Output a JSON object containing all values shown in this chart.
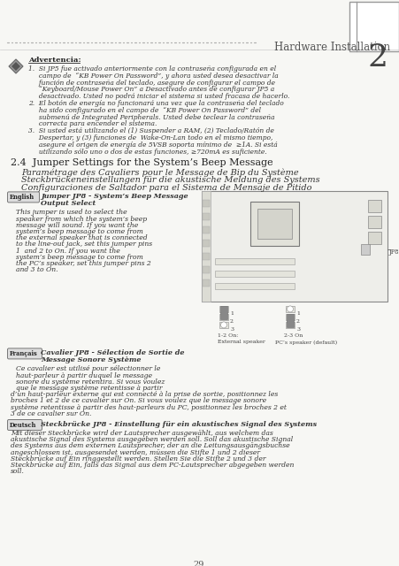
{
  "bg_color": "#f7f7f4",
  "text_color": "#333333",
  "title_header": "Hardware Installation",
  "chapter_num": "2",
  "section_title": "2.4  Jumper Settings for the System’s Beep Message",
  "section_sub1": "Paramétrage des Cavaliers pour le Message de Bip du Système",
  "section_sub2": "Steckbrückeneinstellungen für die akustische Meldung des Systems",
  "section_sub3": "Configuraciones de Saltador para el Sistema de Mensaje de Pitido",
  "advertencia_title": "Advertencia:",
  "adv_lines": [
    "1.  Si JP5 fue activado anteriormente con la contraseña configurada en el",
    "     campo de  “KB Power On Password”, y ahora usted desea desactivar la",
    "     función de contraseña del teclado, asegure de configurar el campo de",
    "     “Keyboard/Mouse Power On” a Desactivado antes de configurar JP5 a",
    "     desactivado. Usted no podrá iniciar el sistema si usted fracasa de hacerlo.",
    "2.  El botón de energía no funcionará una vez que la contraseña del teclado",
    "     ha sido configurado en el campo de  “KB Power On Password” del",
    "     submenú de Integrated Peripherals. Usted debe teclear la contraseña",
    "     correcta para encender el sistema.",
    "3.  Si usted está utilizando el (1) Suspender a RAM, (2) Teclado/Ratón de",
    "     Despertar, y (3) funciones de  Wake-On-Lan todo en el mismo tiempo,",
    "     asegure el origen de energía de 5VSB soporta mínimo de  ≥1A. Si está",
    "     utilizando sólo uno o dos de estas funciones, ≥720mA es suficiente."
  ],
  "english_label": "English",
  "english_title_line1": "Jumper JP8 - System’s Beep Message",
  "english_title_line2": "Output Select",
  "english_body": [
    "This jumper is used to select the",
    "speaker from which the system’s beep",
    "message will sound. If you want the",
    "system’s beep message to come from",
    "the external speaker that is connected",
    "to the line-out jack, set this jumper pins",
    "1  and 2 to On. If you want the",
    "system’s beep message to come from",
    "the PC’s speaker, set this jumper pins 2",
    "and 3 to On."
  ],
  "french_label": "Français",
  "french_title_line1": "Cavalier JP8 - Sélection de Sortie de",
  "french_title_line2": "Message Sonore Système",
  "french_body": [
    "Ce cavalier est utilisé pour sélectionner le",
    "haut-parleur à partir duquel le message",
    "sonore du système retentira. Si vous voulez",
    "que le message système retentisse à partir",
    "d’un haut-parleur externe qui est connecté à la prise de sortie, positionnez les",
    "broches 1 et 2 de ce cavalier sur On. Si vous voulez que le message sonore",
    "système retentisse à partir des haut-parleurs du PC, positionnez les broches 2 et",
    "3 de ce cavalier sur On."
  ],
  "german_label": "Deutsch",
  "german_title": "Steckbrücke JP8 - Einstellung für ein akustisches Signal des Systems",
  "german_body": [
    "Mit dieser Steckbrücke wird der Lautsprecher ausgewählt, aus welchem das",
    "akustische Signal des Systems ausgegeben werden soll. Soll das akustische Signal",
    "des Systems aus dem externen Lautsprecher, der an die Leitungsausgängsbuchse",
    "angeschlossen ist, ausgesendet werden, müssen die Stifte 1 und 2 dieser",
    "Steckbrücke auf Ein ringgestellt werden. Stellen Sie die Stifte 2 und 3 der",
    "Steckbrücke auf Ein, falls das Signal aus dem PC-Lautsprecher abgegeben werden",
    "soll."
  ],
  "page_num": "29",
  "jumper_label1": "1-2 On:",
  "jumper_label2": "External speaker",
  "jumper_label3": "2-3 On",
  "jumper_label4": "PC’s speaker (default)"
}
